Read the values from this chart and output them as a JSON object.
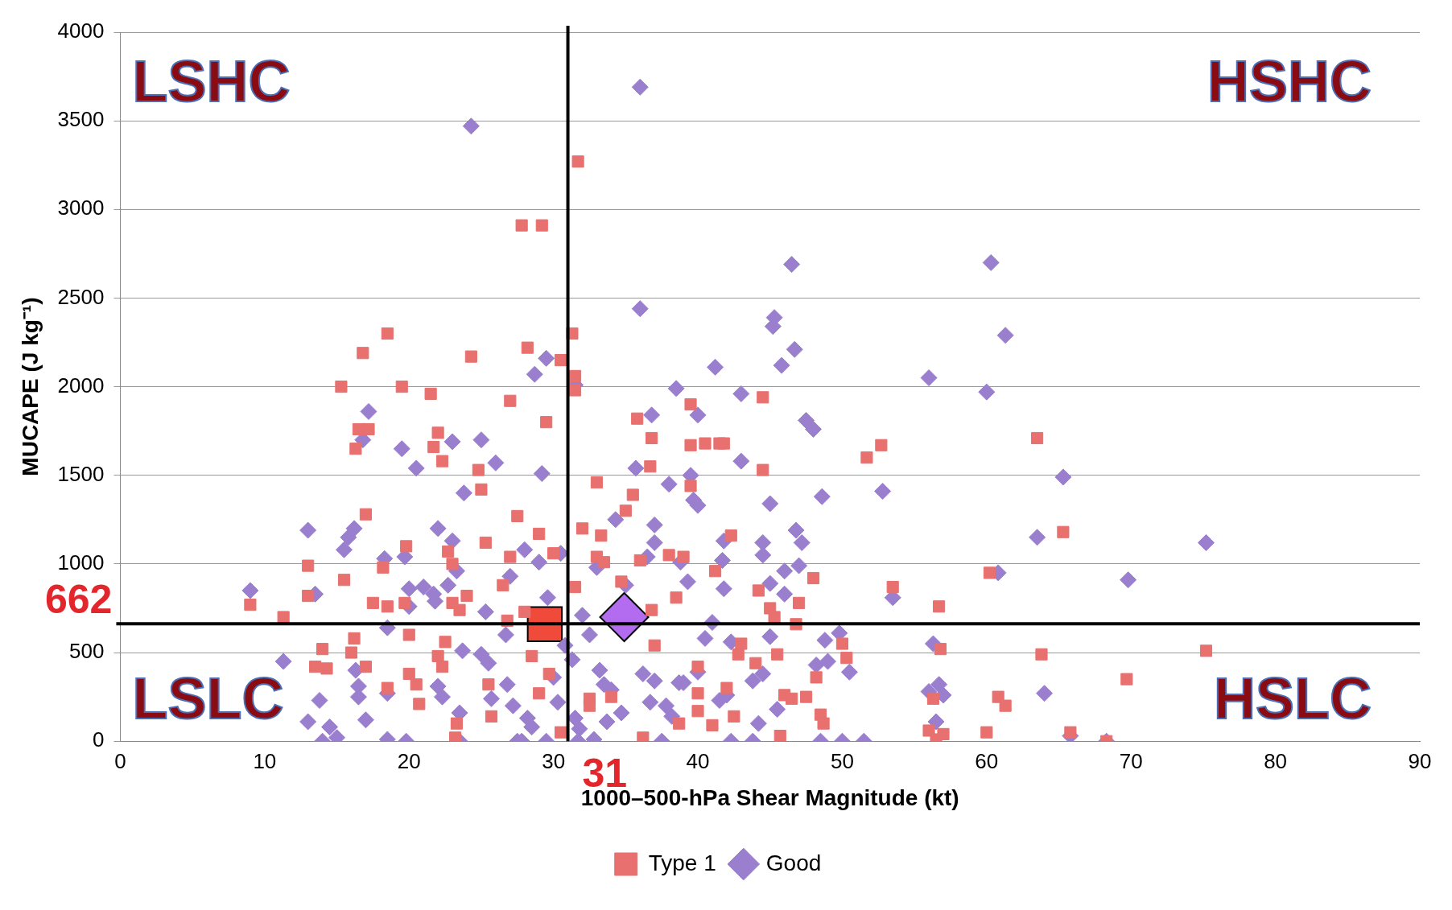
{
  "chart_data": {
    "type": "scatter",
    "xlabel": "1000–500-hPa Shear Magnitude (kt)",
    "ylabel": "MUCAPE (J kg⁻¹)",
    "xlim": [
      0,
      90
    ],
    "xticks": [
      0,
      10,
      20,
      30,
      40,
      50,
      60,
      70,
      80,
      90
    ],
    "ylim": [
      0,
      4000
    ],
    "yticks": [
      0,
      500,
      1000,
      1500,
      2000,
      2500,
      3000,
      3500,
      4000
    ],
    "grid": "y",
    "legend": "bottom",
    "annotations": [
      "LSHC",
      "HSHC",
      "LSLC",
      "HSLC"
    ],
    "ref_lines": [
      {
        "axis": "x",
        "value": 31,
        "label": "31",
        "color": "#000000"
      },
      {
        "axis": "y",
        "value": 662,
        "label": "662",
        "color": "#000000"
      }
    ],
    "series": [
      {
        "name": "Type 1",
        "color": "#e8706e",
        "marker": "square",
        "x": [
          9,
          11.3,
          13,
          13,
          13.5,
          14,
          14.3,
          15.3,
          15.5,
          16,
          16.2,
          16.3,
          16.5,
          16.8,
          17,
          17,
          17.2,
          17.5,
          18.2,
          18.5,
          18.5,
          18.5,
          19.5,
          19.7,
          19.8,
          20,
          20,
          20.5,
          20.7,
          21.5,
          21.7,
          22,
          22,
          22.3,
          22.3,
          22.5,
          22.7,
          23,
          23,
          23.2,
          23.3,
          23.5,
          24,
          24.3,
          24.8,
          25,
          25.3,
          25.5,
          25.7,
          26.5,
          26.8,
          27,
          27,
          27.5,
          27.8,
          28,
          28.2,
          28.5,
          29,
          29.2,
          29,
          29.5,
          29.7,
          30,
          30.5,
          30.5,
          31.3,
          31.5,
          31.7,
          31.5,
          31.5,
          32,
          32.5,
          32.5,
          33,
          33.3,
          33.5,
          33,
          34,
          34.7,
          35,
          35.5,
          35.8,
          36,
          36.2,
          36.7,
          36.8,
          36.8,
          37,
          38,
          38.5,
          38.7,
          39,
          39.5,
          39.5,
          39.5,
          40,
          40,
          40,
          40.5,
          41,
          41.2,
          41.5,
          41.8,
          42,
          42.3,
          42.5,
          42.8,
          43,
          44,
          44.2,
          44.5,
          44.5,
          45,
          45.3,
          45.5,
          45.7,
          46,
          46.5,
          46.8,
          47,
          47.5,
          48,
          48.2,
          48.5,
          48.7,
          50,
          50.3,
          51.7,
          52.7,
          53.5,
          56,
          56.3,
          56.5,
          56.7,
          56.8,
          57,
          60,
          60.2,
          60.8,
          61.3,
          63.5,
          63.8,
          65.3,
          65.8,
          68.3,
          69.7,
          75.2
        ],
        "values": [
          770,
          700,
          990,
          820,
          420,
          520,
          410,
          2000,
          910,
          500,
          580,
          1650,
          1760,
          2190,
          1280,
          420,
          1760,
          780,
          980,
          760,
          2300,
          300,
          2000,
          780,
          1100,
          600,
          380,
          320,
          210,
          1960,
          1660,
          1740,
          480,
          1580,
          420,
          560,
          1070,
          1000,
          780,
          20,
          100,
          740,
          820,
          2170,
          1530,
          1420,
          1120,
          320,
          140,
          880,
          680,
          1920,
          1040,
          1270,
          2910,
          730,
          2220,
          480,
          1170,
          2910,
          270,
          1800,
          380,
          1060,
          2150,
          50,
          2300,
          2060,
          3270,
          1980,
          870,
          1200,
          240,
          200,
          1460,
          1160,
          1010,
          1040,
          250,
          900,
          1300,
          1390,
          1820,
          1020,
          20,
          1550,
          1710,
          740,
          540,
          1050,
          810,
          100,
          1040,
          1670,
          1900,
          1440,
          270,
          170,
          420,
          1680,
          90,
          960,
          1680,
          1680,
          300,
          1160,
          140,
          490,
          550,
          440,
          850,
          1940,
          1530,
          750,
          700,
          490,
          30,
          260,
          240,
          660,
          780,
          250,
          920,
          360,
          150,
          100,
          550,
          470,
          1600,
          1670,
          870,
          60,
          240,
          10,
          760,
          520,
          40,
          50,
          950,
          250,
          200,
          1710,
          490,
          1180,
          50,
          0,
          350,
          510
        ]
      },
      {
        "name": "Good",
        "color": "#9b7fcf",
        "marker": "diamond",
        "x": [
          9,
          11.3,
          13,
          13,
          13.5,
          13.8,
          14,
          14.5,
          15,
          15.5,
          15.8,
          16.2,
          16.3,
          16.5,
          16.5,
          16.8,
          17,
          17.2,
          18.3,
          18.5,
          18.5,
          18.5,
          19.5,
          19.7,
          19.8,
          20,
          20,
          20.5,
          21,
          21.7,
          21.8,
          22,
          22,
          22.3,
          22.7,
          23,
          23,
          23.3,
          23.5,
          23.5,
          23.8,
          23.7,
          24.3,
          25,
          25,
          25.3,
          25.5,
          25.7,
          26,
          26.7,
          26.8,
          27,
          27.2,
          27.5,
          27.8,
          28,
          28.2,
          28.5,
          28.7,
          29,
          29.2,
          29.5,
          29.5,
          29.6,
          30,
          30.3,
          30.5,
          30.8,
          31.3,
          31.5,
          31.5,
          31.7,
          31.8,
          32,
          32.5,
          32.8,
          33,
          33.2,
          33.5,
          33.7,
          34,
          34.3,
          34.7,
          35,
          35.7,
          36,
          36,
          36.2,
          36.5,
          36.7,
          36.8,
          37,
          37,
          37,
          37.5,
          37.8,
          38,
          38.2,
          38.5,
          38.7,
          38.8,
          39,
          39.3,
          39.5,
          39.7,
          40,
          40,
          40,
          40.5,
          41,
          41.2,
          41.5,
          41.7,
          41.8,
          41.8,
          42,
          42.3,
          42.3,
          43,
          43,
          43.8,
          43.8,
          44.2,
          44.5,
          44.5,
          44.5,
          45,
          45,
          45,
          45.2,
          45.3,
          45.5,
          45.8,
          46,
          46,
          46.5,
          46.7,
          46.8,
          47,
          47.2,
          47.5,
          48,
          48.2,
          48.5,
          48.6,
          48.8,
          49,
          49.8,
          50,
          50.5,
          51.5,
          53.5,
          52.8,
          56,
          56,
          56.3,
          56.5,
          56.7,
          57,
          60,
          60.3,
          60.8,
          61.3,
          63.5,
          64,
          65.3,
          65.8,
          68.3,
          69.8,
          75.2
        ],
        "values": [
          850,
          450,
          1190,
          110,
          830,
          230,
          0,
          80,
          20,
          1080,
          1150,
          1200,
          400,
          310,
          250,
          1700,
          120,
          1860,
          1030,
          640,
          270,
          10,
          1650,
          1040,
          0,
          860,
          760,
          1540,
          870,
          830,
          790,
          1200,
          310,
          250,
          880,
          1690,
          1130,
          960,
          160,
          0,
          1400,
          510,
          3470,
          1700,
          490,
          730,
          440,
          240,
          1570,
          600,
          320,
          930,
          200,
          0,
          0,
          1080,
          130,
          80,
          2070,
          1010,
          1510,
          2160,
          0,
          810,
          360,
          220,
          1060,
          540,
          460,
          2010,
          130,
          0,
          70,
          710,
          600,
          10,
          980,
          400,
          320,
          110,
          290,
          1250,
          160,
          880,
          1540,
          2440,
          3690,
          380,
          1040,
          220,
          1840,
          1120,
          1220,
          340,
          0,
          200,
          1450,
          140,
          1990,
          330,
          1010,
          330,
          900,
          1500,
          1360,
          1840,
          1330,
          390,
          580,
          670,
          2110,
          230,
          1020,
          1130,
          860,
          260,
          0,
          560,
          1580,
          1960,
          340,
          0,
          100,
          1120,
          1050,
          380,
          890,
          590,
          1340,
          2340,
          2390,
          180,
          2120,
          960,
          830,
          2690,
          2210,
          1190,
          990,
          1120,
          1810,
          1760,
          430,
          0,
          1380,
          570,
          450,
          610,
          0,
          390,
          0,
          810,
          1410,
          2050,
          280,
          550,
          110,
          320,
          260,
          1970,
          2700,
          950,
          2290,
          1150,
          270,
          1490,
          30,
          0,
          910,
          1120
        ]
      },
      {
        "color": "#f04a3a",
        "marker": "square",
        "x": [
          29.4
        ],
        "values": [
          660
        ]
      },
      {
        "color": "#b36cf0",
        "marker": "diamond",
        "x": [
          34.9
        ],
        "values": [
          700
        ]
      }
    ]
  }
}
